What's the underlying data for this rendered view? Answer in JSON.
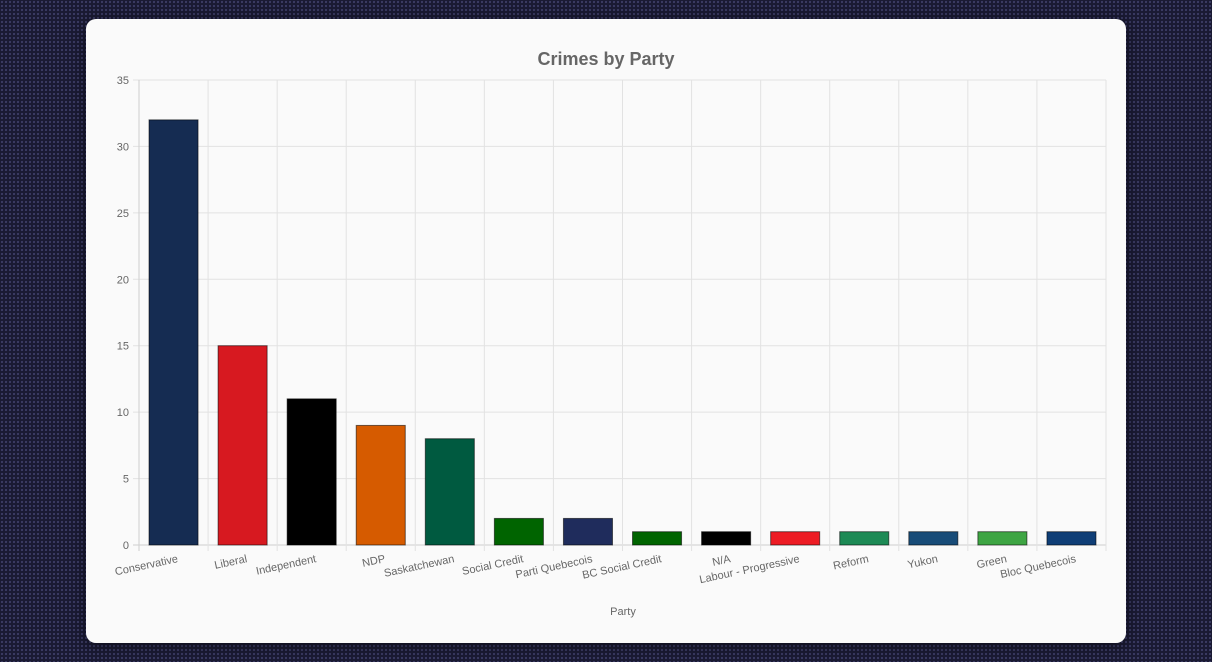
{
  "chart_data": {
    "type": "bar",
    "title": "Crimes by Party",
    "xlabel": "Party",
    "ylabel": "",
    "ylim": [
      0,
      35
    ],
    "yticks": [
      0,
      5,
      10,
      15,
      20,
      25,
      30,
      35
    ],
    "grid": true,
    "legend": "none",
    "categories": [
      "Conservative",
      "Liberal",
      "Independent",
      "NDP",
      "Saskatchewan",
      "Social Credit",
      "Parti Quebecois",
      "BC Social Credit",
      "N/A",
      "Labour - Progressive",
      "Reform",
      "Yukon",
      "Green",
      "Bloc Quebecois"
    ],
    "values": [
      32,
      15,
      11,
      9,
      8,
      2,
      2,
      1,
      1,
      1,
      1,
      1,
      1,
      1
    ],
    "colors": [
      "#152c52",
      "#d71920",
      "#000000",
      "#d65b00",
      "#005a40",
      "#006400",
      "#1f2c5c",
      "#006400",
      "#000000",
      "#ed1c24",
      "#1d8a55",
      "#184c78",
      "#3ea543",
      "#0f3e76"
    ]
  }
}
